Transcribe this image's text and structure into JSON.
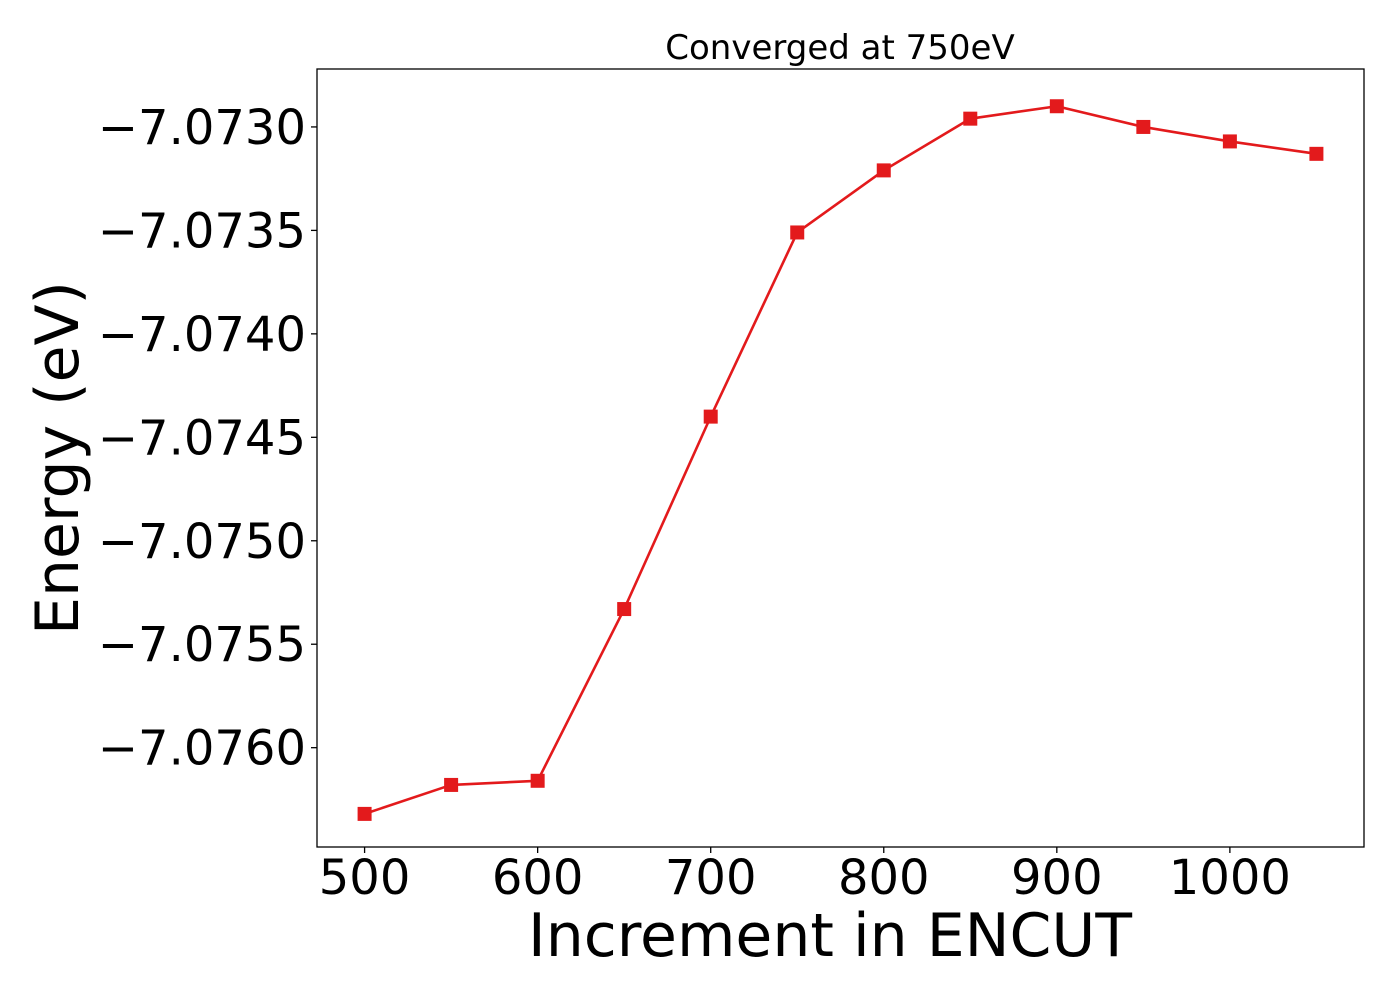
{
  "chart_data": {
    "type": "line",
    "title": "Converged at 750eV",
    "xlabel": "Increment in ENCUT",
    "ylabel": "Energy (eV)",
    "xlim": [
      472.5,
      1077.5
    ],
    "ylim": [
      -7.07648,
      -7.07272
    ],
    "x_ticks": [
      500,
      600,
      700,
      800,
      900,
      1000
    ],
    "x_tick_labels": [
      "500",
      "600",
      "700",
      "800",
      "900",
      "1000"
    ],
    "y_ticks": [
      -7.076,
      -7.0755,
      -7.075,
      -7.0745,
      -7.074,
      -7.0735,
      -7.073
    ],
    "y_tick_labels": [
      "−7.0760",
      "−7.0755",
      "−7.0750",
      "−7.0745",
      "−7.0740",
      "−7.0735",
      "−7.0730"
    ],
    "grid": false,
    "legend": "none",
    "series": [
      {
        "color": "#e31a1c",
        "marker": "square",
        "x": [
          500,
          550,
          600,
          650,
          700,
          750,
          800,
          850,
          900,
          950,
          1000,
          1050
        ],
        "y": [
          -7.07632,
          -7.07618,
          -7.07616,
          -7.07533,
          -7.0744,
          -7.07351,
          -7.07321,
          -7.07296,
          -7.0729,
          -7.073,
          -7.07307,
          -7.07313
        ]
      }
    ]
  }
}
